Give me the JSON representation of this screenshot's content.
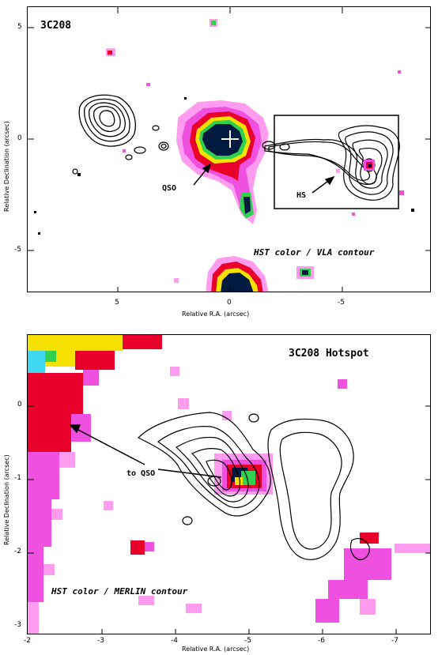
{
  "top_panel": {
    "title": "3C208",
    "caption": "HST color / VLA contour",
    "xlabel": "Relative R.A. (arcsec)",
    "ylabel": "Relative Declination (arcsec)",
    "x_ticks": [
      "5",
      "0",
      "-5"
    ],
    "y_ticks": [
      "5",
      "0",
      "-5"
    ],
    "qso_label": "QSO",
    "hs_label": "HS"
  },
  "bottom_panel": {
    "title": "3C208 Hotspot",
    "caption": "HST color / MERLIN contour",
    "xlabel": "Relative R.A. (arcsec)",
    "ylabel": "Relative Declination (arcsec)",
    "x_ticks": [
      "-2",
      "-3",
      "-4",
      "-5",
      "-6",
      "-7"
    ],
    "y_ticks": [
      "0",
      "-1",
      "-2",
      "-3"
    ],
    "arrow_label": "to QSO"
  },
  "colors": {
    "magenta": "#f050e0",
    "pink": "#ff9cf0",
    "red": "#e8002a",
    "yellow": "#f5e000",
    "green": "#30d050",
    "cyan": "#40d8f0",
    "navy": "#001a40"
  }
}
